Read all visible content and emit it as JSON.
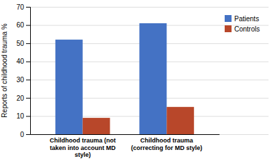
{
  "chart_data": {
    "type": "bar",
    "categories": [
      "Childhood trauma (not\ntaken into account MD\nstyle)",
      "Childhood trauma\n(correcting for MD style)"
    ],
    "series": [
      {
        "name": "Patients",
        "color": "#4472C4",
        "values": [
          52,
          61
        ]
      },
      {
        "name": "Controls",
        "color": "#B8472A",
        "values": [
          9,
          15
        ]
      }
    ],
    "y_label": "Reports of childhood trauma %",
    "ylim": [
      0,
      70
    ],
    "yticks": [
      0,
      10,
      20,
      30,
      40,
      50,
      60,
      70
    ],
    "grid": true,
    "legend": "upper right"
  }
}
